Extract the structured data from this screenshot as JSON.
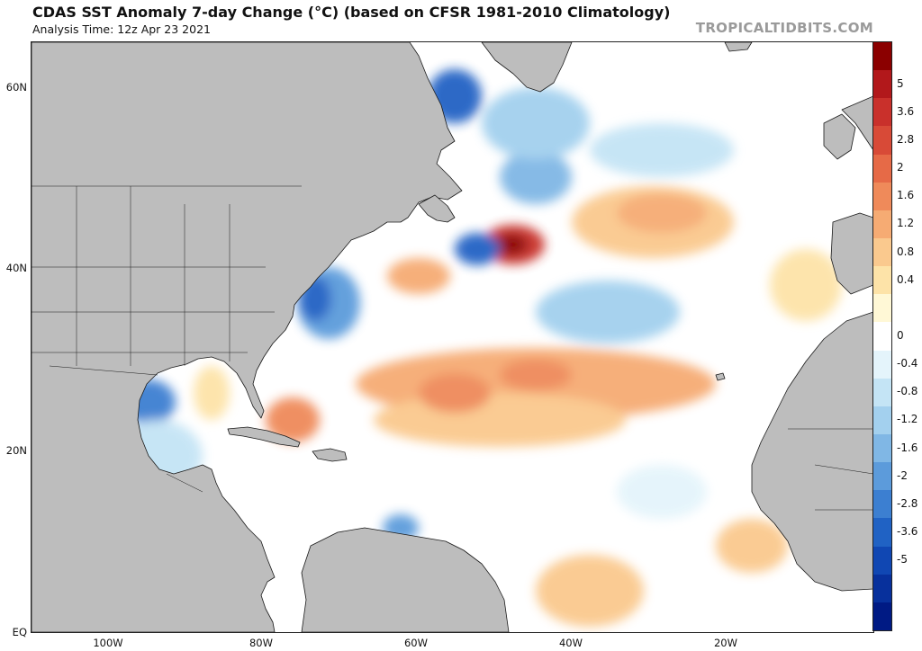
{
  "header": {
    "title": "CDAS SST Anomaly 7-day Change (°C) (based on CFSR 1981-2010 Climatology)",
    "analysis_time": "Analysis Time: 12z Apr 23 2021",
    "credit": "TROPICALTIDBITS.COM"
  },
  "axes": {
    "lat_labels": [
      "60N",
      "40N",
      "20N",
      "EQ"
    ],
    "lon_labels": [
      "100W",
      "80W",
      "60W",
      "40W",
      "20W"
    ]
  },
  "colorbar": {
    "labels": [
      "5",
      "3.6",
      "2.8",
      "2",
      "1.6",
      "1.2",
      "0.8",
      "0.4",
      "0",
      "-0.4",
      "-0.8",
      "-1.2",
      "-1.6",
      "-2",
      "-2.8",
      "-3.6",
      "-5"
    ],
    "colors": [
      "#8b0000",
      "#b2181b",
      "#c9302b",
      "#d84a37",
      "#e66a47",
      "#ef8a5a",
      "#f6ab73",
      "#fac98e",
      "#fde3a8",
      "#fff8d6",
      "#ffffff",
      "#e4f4fb",
      "#c4e4f5",
      "#a3d0ee",
      "#80b7e5",
      "#5c9bdb",
      "#3c7fd1",
      "#2062c4",
      "#1047b3",
      "#07309c",
      "#001a84"
    ]
  },
  "colors": {
    "land": "#bdbdbd",
    "ocean": "#ffffff"
  }
}
